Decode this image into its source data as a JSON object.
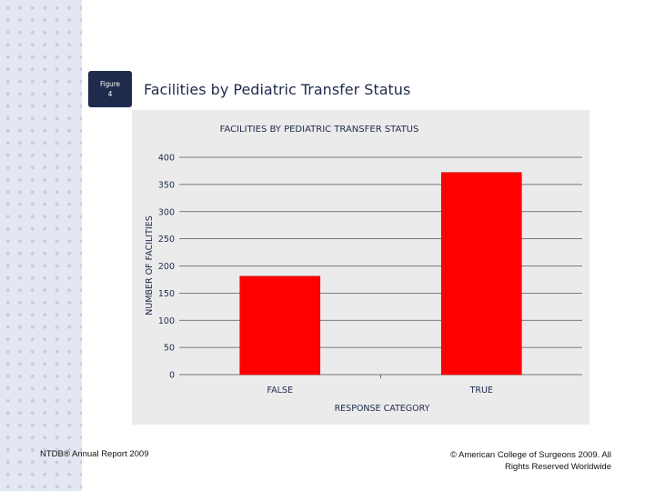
{
  "slide": {
    "figure_label_line1": "Figure",
    "figure_label_line2": "4",
    "title": "Facilities by Pediatric Transfer Status",
    "footer_left": "NTDB® Annual Report 2009",
    "footer_right_line1": "© American College of Surgeons 2009.  All",
    "footer_right_line2": "Rights Reserved Worldwide"
  },
  "chart_data": {
    "type": "bar",
    "title": "FACILITIES BY PEDIATRIC TRANSFER STATUS",
    "xlabel": "RESPONSE CATEGORY",
    "ylabel": "NUMBER OF FACILITIES",
    "categories": [
      "FALSE",
      "TRUE"
    ],
    "values": [
      181,
      372
    ],
    "ylim": [
      0,
      400
    ],
    "yticks": [
      0,
      50,
      100,
      150,
      200,
      250,
      300,
      350,
      400
    ],
    "grid": true,
    "colors": {
      "bar": "#ff0000",
      "bar_edge": "#cc0000",
      "axis_text": "#1f2b4d",
      "grid": "#555555"
    }
  }
}
